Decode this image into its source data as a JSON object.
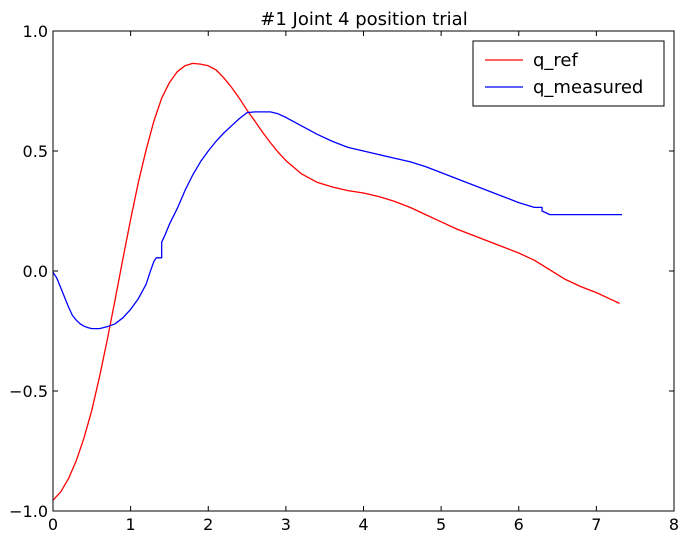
{
  "chart_data": {
    "type": "line",
    "title": "#1 Joint 4 position trial",
    "xlabel": "",
    "ylabel": "",
    "xlim": [
      0,
      8
    ],
    "ylim": [
      -1.0,
      1.0
    ],
    "xticks": [
      0,
      1,
      2,
      3,
      4,
      5,
      6,
      7,
      8
    ],
    "xtick_labels": [
      "0",
      "1",
      "2",
      "3",
      "4",
      "5",
      "6",
      "7",
      "8"
    ],
    "yticks": [
      -1.0,
      -0.5,
      0.0,
      0.5,
      1.0
    ],
    "ytick_labels": [
      "−1.0",
      "−0.5",
      "0.0",
      "0.5",
      "1.0"
    ],
    "grid": false,
    "legend_position": "upper-right",
    "series": [
      {
        "name": "q_ref",
        "color": "#ff0000",
        "points": [
          [
            0.0,
            -0.955
          ],
          [
            0.1,
            -0.92
          ],
          [
            0.2,
            -0.865
          ],
          [
            0.3,
            -0.79
          ],
          [
            0.4,
            -0.695
          ],
          [
            0.5,
            -0.58
          ],
          [
            0.6,
            -0.44
          ],
          [
            0.7,
            -0.285
          ],
          [
            0.8,
            -0.12
          ],
          [
            0.9,
            0.05
          ],
          [
            1.0,
            0.215
          ],
          [
            1.1,
            0.37
          ],
          [
            1.2,
            0.505
          ],
          [
            1.3,
            0.625
          ],
          [
            1.4,
            0.72
          ],
          [
            1.5,
            0.785
          ],
          [
            1.6,
            0.83
          ],
          [
            1.7,
            0.855
          ],
          [
            1.8,
            0.865
          ],
          [
            1.9,
            0.862
          ],
          [
            2.0,
            0.855
          ],
          [
            2.1,
            0.838
          ],
          [
            2.2,
            0.805
          ],
          [
            2.3,
            0.765
          ],
          [
            2.4,
            0.72
          ],
          [
            2.5,
            0.67
          ],
          [
            2.6,
            0.625
          ],
          [
            2.7,
            0.578
          ],
          [
            2.8,
            0.535
          ],
          [
            2.9,
            0.495
          ],
          [
            3.0,
            0.46
          ],
          [
            3.2,
            0.405
          ],
          [
            3.4,
            0.37
          ],
          [
            3.6,
            0.35
          ],
          [
            3.8,
            0.335
          ],
          [
            4.0,
            0.325
          ],
          [
            4.2,
            0.31
          ],
          [
            4.4,
            0.29
          ],
          [
            4.6,
            0.265
          ],
          [
            4.8,
            0.235
          ],
          [
            5.0,
            0.205
          ],
          [
            5.2,
            0.175
          ],
          [
            5.4,
            0.15
          ],
          [
            5.6,
            0.125
          ],
          [
            5.8,
            0.1
          ],
          [
            6.0,
            0.075
          ],
          [
            6.2,
            0.045
          ],
          [
            6.4,
            0.005
          ],
          [
            6.6,
            -0.035
          ],
          [
            6.8,
            -0.065
          ],
          [
            7.0,
            -0.09
          ],
          [
            7.2,
            -0.12
          ],
          [
            7.3,
            -0.135
          ]
        ]
      },
      {
        "name": "q_measured",
        "color": "#0000ff",
        "points": [
          [
            0.0,
            -0.005
          ],
          [
            0.05,
            -0.03
          ],
          [
            0.1,
            -0.07
          ],
          [
            0.15,
            -0.11
          ],
          [
            0.2,
            -0.15
          ],
          [
            0.25,
            -0.185
          ],
          [
            0.3,
            -0.205
          ],
          [
            0.35,
            -0.22
          ],
          [
            0.4,
            -0.23
          ],
          [
            0.45,
            -0.236
          ],
          [
            0.5,
            -0.24
          ],
          [
            0.6,
            -0.24
          ],
          [
            0.7,
            -0.232
          ],
          [
            0.8,
            -0.22
          ],
          [
            0.9,
            -0.195
          ],
          [
            1.0,
            -0.16
          ],
          [
            1.1,
            -0.115
          ],
          [
            1.2,
            -0.055
          ],
          [
            1.25,
            -0.005
          ],
          [
            1.3,
            0.04
          ],
          [
            1.33,
            0.055
          ],
          [
            1.4,
            0.055
          ],
          [
            1.4,
            0.12
          ],
          [
            1.45,
            0.155
          ],
          [
            1.5,
            0.195
          ],
          [
            1.6,
            0.26
          ],
          [
            1.7,
            0.335
          ],
          [
            1.8,
            0.4
          ],
          [
            1.9,
            0.455
          ],
          [
            2.0,
            0.5
          ],
          [
            2.1,
            0.54
          ],
          [
            2.2,
            0.575
          ],
          [
            2.3,
            0.605
          ],
          [
            2.4,
            0.635
          ],
          [
            2.5,
            0.66
          ],
          [
            2.6,
            0.663
          ],
          [
            2.7,
            0.663
          ],
          [
            2.8,
            0.663
          ],
          [
            2.9,
            0.655
          ],
          [
            3.0,
            0.64
          ],
          [
            3.2,
            0.605
          ],
          [
            3.4,
            0.57
          ],
          [
            3.6,
            0.54
          ],
          [
            3.8,
            0.515
          ],
          [
            4.0,
            0.5
          ],
          [
            4.2,
            0.485
          ],
          [
            4.4,
            0.47
          ],
          [
            4.6,
            0.455
          ],
          [
            4.8,
            0.435
          ],
          [
            5.0,
            0.41
          ],
          [
            5.2,
            0.385
          ],
          [
            5.4,
            0.36
          ],
          [
            5.6,
            0.335
          ],
          [
            5.8,
            0.31
          ],
          [
            6.0,
            0.285
          ],
          [
            6.2,
            0.265
          ],
          [
            6.3,
            0.265
          ],
          [
            6.3,
            0.25
          ],
          [
            6.4,
            0.235
          ],
          [
            6.6,
            0.235
          ],
          [
            7.0,
            0.235
          ],
          [
            7.33,
            0.235
          ]
        ]
      }
    ]
  }
}
